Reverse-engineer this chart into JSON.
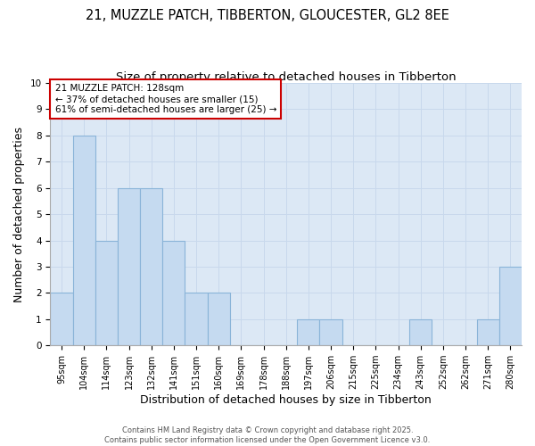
{
  "title": "21, MUZZLE PATCH, TIBBERTON, GLOUCESTER, GL2 8EE",
  "subtitle": "Size of property relative to detached houses in Tibberton",
  "xlabel": "Distribution of detached houses by size in Tibberton",
  "ylabel": "Number of detached properties",
  "categories": [
    "95sqm",
    "104sqm",
    "114sqm",
    "123sqm",
    "132sqm",
    "141sqm",
    "151sqm",
    "160sqm",
    "169sqm",
    "178sqm",
    "188sqm",
    "197sqm",
    "206sqm",
    "215sqm",
    "225sqm",
    "234sqm",
    "243sqm",
    "252sqm",
    "262sqm",
    "271sqm",
    "280sqm"
  ],
  "values": [
    2,
    8,
    4,
    6,
    6,
    4,
    2,
    2,
    0,
    0,
    0,
    1,
    1,
    0,
    0,
    0,
    1,
    0,
    0,
    1,
    3
  ],
  "bar_color": "#c5daf0",
  "bar_edge_color": "#8ab4d8",
  "subject_line_color": "#cc0000",
  "annotation_line1": "21 MUZZLE PATCH: 128sqm",
  "annotation_line2": "← 37% of detached houses are smaller (15)",
  "annotation_line3": "61% of semi-detached houses are larger (25) →",
  "annotation_box_color": "#ffffff",
  "annotation_box_edge_color": "#cc0000",
  "ylim": [
    0,
    10
  ],
  "yticks": [
    0,
    1,
    2,
    3,
    4,
    5,
    6,
    7,
    8,
    9,
    10
  ],
  "grid_color": "#c8d8ec",
  "bg_color": "#dce8f5",
  "footer1": "Contains HM Land Registry data © Crown copyright and database right 2025.",
  "footer2": "Contains public sector information licensed under the Open Government Licence v3.0.",
  "title_fontsize": 10.5,
  "subtitle_fontsize": 9.5,
  "xlabel_fontsize": 9,
  "ylabel_fontsize": 9,
  "tick_fontsize": 7,
  "annotation_fontsize": 7.5,
  "footer_fontsize": 6
}
